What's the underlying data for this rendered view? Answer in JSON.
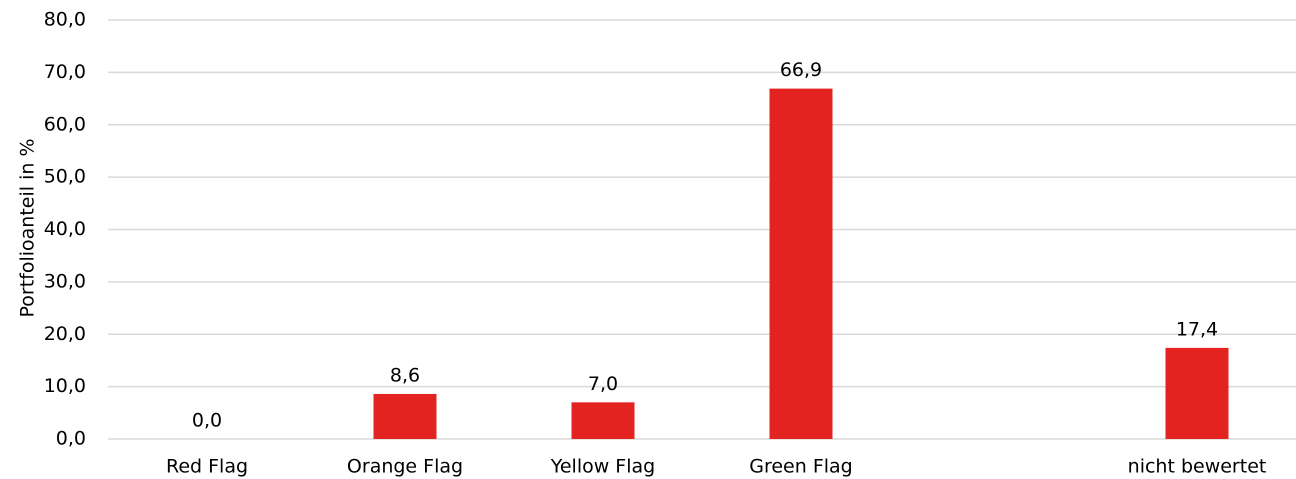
{
  "chart_data": {
    "type": "bar",
    "categories": [
      "Red Flag",
      "Orange Flag",
      "Yellow Flag",
      "Green Flag",
      "",
      "nicht bewertet"
    ],
    "values": [
      0.0,
      8.6,
      7.0,
      66.9,
      null,
      17.4
    ],
    "data_labels": [
      "0,0",
      "8,6",
      "7,0",
      "66,9",
      "",
      "17,4"
    ],
    "ylabel": "Portfolioanteil in %",
    "xlabel": "",
    "title": "",
    "ylim": [
      0,
      80
    ],
    "yticks": [
      0,
      10,
      20,
      30,
      40,
      50,
      60,
      70,
      80
    ],
    "ytick_labels": [
      "0,0",
      "10,0",
      "20,0",
      "30,0",
      "40,0",
      "50,0",
      "60,0",
      "70,0",
      "80,0"
    ],
    "grid": true,
    "legend": "none",
    "bar_color": "#e32320"
  }
}
